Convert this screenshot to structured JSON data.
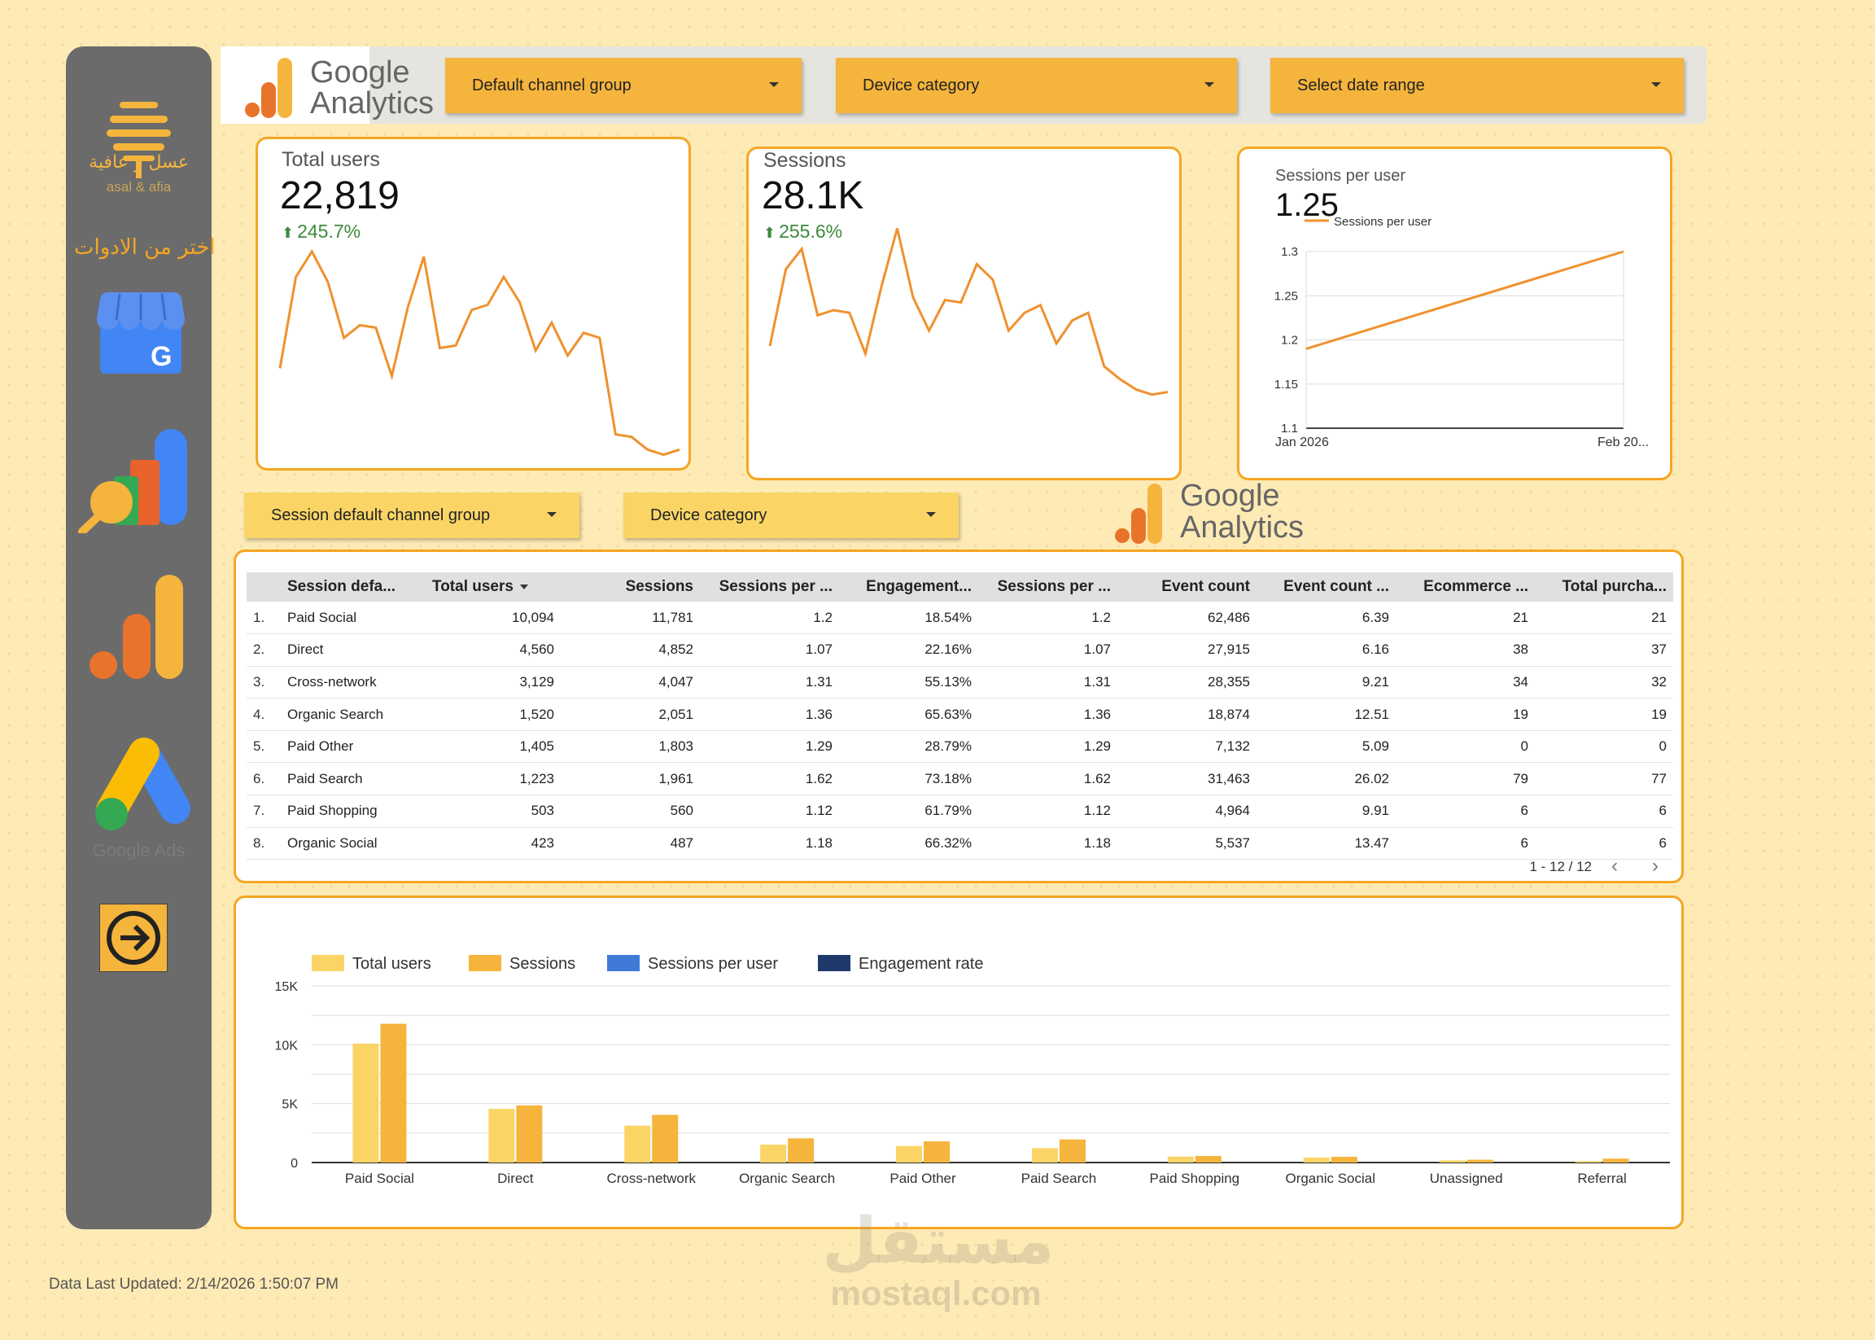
{
  "sidebar": {
    "brand_ar": "عسل و عافية",
    "brand_en": "asal & afia",
    "heading": "اختر من الادوات",
    "tools": [
      {
        "name": "google-business-profile-icon"
      },
      {
        "name": "google-analytics-search-icon"
      },
      {
        "name": "google-analytics-icon"
      },
      {
        "name": "google-ads-icon",
        "label": "Google Ads"
      },
      {
        "name": "arrow-right-circle-icon"
      }
    ]
  },
  "header": {
    "logo_line1": "Google",
    "logo_line2": "Analytics",
    "filters": [
      {
        "label": "Default channel group"
      },
      {
        "label": "Device category"
      },
      {
        "label": "Select date range"
      }
    ]
  },
  "kpis": {
    "total_users": {
      "label": "Total users",
      "value": "22,819",
      "delta": "245.7%",
      "trend": [
        0.38,
        0.74,
        0.84,
        0.72,
        0.5,
        0.55,
        0.54,
        0.35,
        0.62,
        0.82,
        0.46,
        0.47,
        0.61,
        0.63,
        0.74,
        0.64,
        0.45,
        0.56,
        0.43,
        0.52,
        0.5,
        0.12,
        0.11,
        0.06,
        0.04,
        0.06
      ]
    },
    "sessions": {
      "label": "Sessions",
      "value": "28.1K",
      "delta": "255.6%",
      "trend": [
        0.5,
        0.8,
        0.88,
        0.62,
        0.64,
        0.63,
        0.47,
        0.73,
        0.96,
        0.69,
        0.56,
        0.68,
        0.67,
        0.82,
        0.76,
        0.56,
        0.63,
        0.66,
        0.51,
        0.6,
        0.63,
        0.42,
        0.37,
        0.33,
        0.31,
        0.32
      ]
    },
    "sessions_per_user": {
      "label": "Sessions per user",
      "value": "1.25",
      "legend": "Sessions per user",
      "y_ticks": [
        "1.3",
        "1.25",
        "1.2",
        "1.15",
        "1.1"
      ],
      "x_ticks": [
        "Jan 2026",
        "Feb 20..."
      ],
      "ylim": [
        1.1,
        1.3
      ],
      "points": [
        1.19,
        1.3
      ]
    }
  },
  "filters2": [
    {
      "label": "Session default channel group"
    },
    {
      "label": "Device category"
    }
  ],
  "logo2": {
    "line1": "Google",
    "line2": "Analytics"
  },
  "table": {
    "columns": [
      "Session defa...",
      "Total users",
      "Sessions",
      "Sessions per ...",
      "Engagement...",
      "Sessions per ...",
      "Event count",
      "Event count ...",
      "Ecommerce ...",
      "Total purcha..."
    ],
    "rows": [
      [
        "1.",
        "Paid Social",
        "10,094",
        "11,781",
        "1.2",
        "18.54%",
        "1.2",
        "62,486",
        "6.39",
        "21",
        "21"
      ],
      [
        "2.",
        "Direct",
        "4,560",
        "4,852",
        "1.07",
        "22.16%",
        "1.07",
        "27,915",
        "6.16",
        "38",
        "37"
      ],
      [
        "3.",
        "Cross-network",
        "3,129",
        "4,047",
        "1.31",
        "55.13%",
        "1.31",
        "28,355",
        "9.21",
        "34",
        "32"
      ],
      [
        "4.",
        "Organic Search",
        "1,520",
        "2,051",
        "1.36",
        "65.63%",
        "1.36",
        "18,874",
        "12.51",
        "19",
        "19"
      ],
      [
        "5.",
        "Paid Other",
        "1,405",
        "1,803",
        "1.29",
        "28.79%",
        "1.29",
        "7,132",
        "5.09",
        "0",
        "0"
      ],
      [
        "6.",
        "Paid Search",
        "1,223",
        "1,961",
        "1.62",
        "73.18%",
        "1.62",
        "31,463",
        "26.02",
        "79",
        "77"
      ],
      [
        "7.",
        "Paid Shopping",
        "503",
        "560",
        "1.12",
        "61.79%",
        "1.12",
        "4,964",
        "9.91",
        "6",
        "6"
      ],
      [
        "8.",
        "Organic Social",
        "423",
        "487",
        "1.18",
        "66.32%",
        "1.18",
        "5,537",
        "13.47",
        "6",
        "6"
      ]
    ],
    "pagination": "1 - 12 / 12"
  },
  "chart_data": {
    "type": "bar",
    "categories": [
      "Paid Social",
      "Direct",
      "Cross-network",
      "Organic Search",
      "Paid Other",
      "Paid Search",
      "Paid Shopping",
      "Organic Social",
      "Unassigned",
      "Referral"
    ],
    "series": [
      {
        "name": "Total users",
        "color": "#fad566",
        "values": [
          10094,
          4560,
          3129,
          1520,
          1405,
          1223,
          503,
          423,
          180,
          120
        ]
      },
      {
        "name": "Sessions",
        "color": "#f5b43c",
        "values": [
          11781,
          4852,
          4047,
          2051,
          1803,
          1961,
          560,
          487,
          240,
          330
        ]
      },
      {
        "name": "Sessions per user",
        "color": "#3f7ad8",
        "values": [
          1.2,
          1.07,
          1.31,
          1.36,
          1.29,
          1.62,
          1.12,
          1.18,
          1.3,
          2.7
        ]
      },
      {
        "name": "Engagement rate",
        "color": "#1e3a6b",
        "values": [
          0.19,
          0.22,
          0.55,
          0.66,
          0.29,
          0.73,
          0.62,
          0.66,
          0.1,
          0.5
        ]
      }
    ],
    "y_ticks": [
      "0",
      "5K",
      "10K",
      "15K"
    ],
    "ylim": [
      0,
      15000
    ]
  },
  "footer": {
    "updated": "Data Last Updated: 2/14/2026 1:50:07 PM"
  },
  "watermark": {
    "ar": "مستقل",
    "en": "mostaql.com"
  }
}
